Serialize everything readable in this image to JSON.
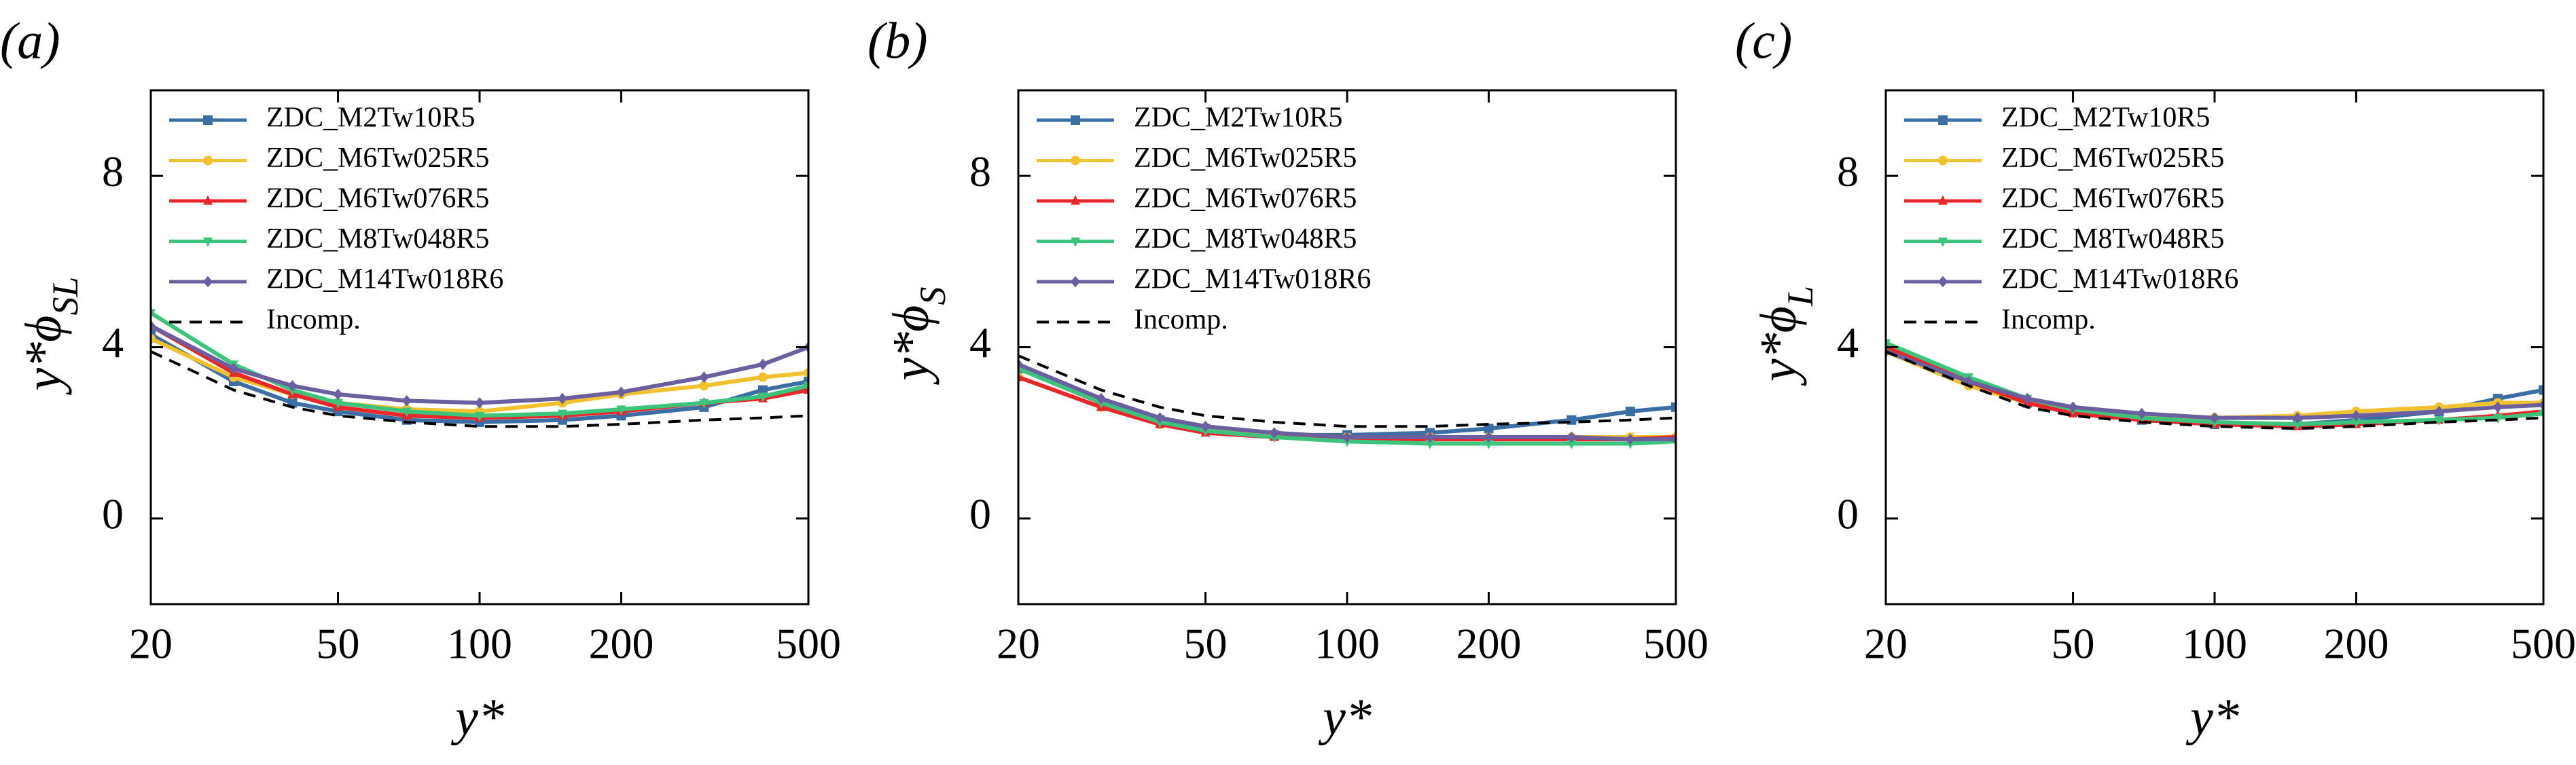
{
  "chart_data": [
    {
      "type": "line",
      "panel": "(a)",
      "ylabel": "y*ϕ",
      "ylabel_subscript": "SL",
      "xlabel": "y*",
      "xscale": "log",
      "xlim": [
        20,
        500
      ],
      "xticks": [
        20,
        50,
        100,
        200,
        500
      ],
      "ylim": [
        -2,
        10
      ],
      "yticks": [
        0,
        4,
        8
      ],
      "legend": "upper left",
      "x": [
        20,
        30,
        40,
        50,
        70,
        100,
        150,
        200,
        300,
        400,
        500
      ],
      "series": [
        {
          "name": "ZDC_M2Tw10R5",
          "color": "#3b6ea5",
          "marker": "square",
          "values": [
            4.3,
            3.2,
            2.7,
            2.5,
            2.3,
            2.25,
            2.3,
            2.4,
            2.6,
            3.0,
            3.2
          ]
        },
        {
          "name": "ZDC_M6Tw025R5",
          "color": "#f2c12e",
          "marker": "circle",
          "values": [
            4.2,
            3.3,
            2.9,
            2.7,
            2.55,
            2.5,
            2.7,
            2.9,
            3.1,
            3.3,
            3.4
          ]
        },
        {
          "name": "ZDC_M6Tw076R5",
          "color": "#e8262b",
          "marker": "triangle-up",
          "values": [
            4.5,
            3.4,
            2.9,
            2.6,
            2.4,
            2.35,
            2.4,
            2.5,
            2.7,
            2.8,
            3.0
          ]
        },
        {
          "name": "ZDC_M8Tw048R5",
          "color": "#3cc47c",
          "marker": "triangle-down",
          "values": [
            4.8,
            3.6,
            3.0,
            2.7,
            2.5,
            2.4,
            2.45,
            2.55,
            2.7,
            2.85,
            3.1
          ]
        },
        {
          "name": "ZDC_M14Tw018R6",
          "color": "#6b5fa0",
          "marker": "diamond",
          "values": [
            4.5,
            3.5,
            3.1,
            2.9,
            2.75,
            2.7,
            2.8,
            2.95,
            3.3,
            3.6,
            4.0
          ]
        },
        {
          "name": "Incomp.",
          "color": "#000000",
          "marker": "none",
          "dashed": true,
          "values": [
            3.9,
            3.0,
            2.6,
            2.4,
            2.25,
            2.15,
            2.15,
            2.2,
            2.3,
            2.35,
            2.4
          ]
        }
      ]
    },
    {
      "type": "line",
      "panel": "(b)",
      "ylabel": "y*ϕ",
      "ylabel_subscript": "S",
      "xlabel": "y*",
      "xscale": "log",
      "xlim": [
        20,
        500
      ],
      "xticks": [
        20,
        50,
        100,
        200,
        500
      ],
      "ylim": [
        -2,
        10
      ],
      "yticks": [
        0,
        4,
        8
      ],
      "legend": "upper left",
      "x": [
        20,
        30,
        40,
        50,
        70,
        100,
        150,
        200,
        300,
        400,
        500
      ],
      "series": [
        {
          "name": "ZDC_M2Tw10R5",
          "color": "#3b6ea5",
          "marker": "square",
          "values": [
            3.5,
            2.7,
            2.3,
            2.1,
            1.95,
            1.95,
            2.0,
            2.1,
            2.3,
            2.5,
            2.6
          ]
        },
        {
          "name": "ZDC_M6Tw025R5",
          "color": "#f2c12e",
          "marker": "circle",
          "values": [
            3.3,
            2.6,
            2.2,
            2.05,
            1.95,
            1.9,
            1.9,
            1.9,
            1.9,
            1.9,
            1.9
          ]
        },
        {
          "name": "ZDC_M6Tw076R5",
          "color": "#e8262b",
          "marker": "triangle-up",
          "values": [
            3.3,
            2.6,
            2.2,
            2.0,
            1.9,
            1.85,
            1.85,
            1.85,
            1.85,
            1.85,
            1.9
          ]
        },
        {
          "name": "ZDC_M8Tw048R5",
          "color": "#3cc47c",
          "marker": "triangle-down",
          "values": [
            3.5,
            2.7,
            2.25,
            2.05,
            1.9,
            1.8,
            1.75,
            1.75,
            1.75,
            1.75,
            1.8
          ]
        },
        {
          "name": "ZDC_M14Tw018R6",
          "color": "#6b5fa0",
          "marker": "diamond",
          "values": [
            3.6,
            2.8,
            2.35,
            2.15,
            2.0,
            1.9,
            1.9,
            1.9,
            1.9,
            1.85,
            1.85
          ]
        },
        {
          "name": "Incomp.",
          "color": "#000000",
          "marker": "none",
          "dashed": true,
          "values": [
            3.8,
            3.0,
            2.6,
            2.4,
            2.25,
            2.15,
            2.15,
            2.2,
            2.25,
            2.3,
            2.35
          ]
        }
      ]
    },
    {
      "type": "line",
      "panel": "(c)",
      "ylabel": "y*ϕ",
      "ylabel_subscript": "L",
      "xlabel": "y*",
      "xscale": "log",
      "xlim": [
        20,
        500
      ],
      "xticks": [
        20,
        50,
        100,
        200,
        500
      ],
      "ylim": [
        -2,
        10
      ],
      "yticks": [
        0,
        4,
        8
      ],
      "legend": "upper left",
      "x": [
        20,
        30,
        40,
        50,
        70,
        100,
        150,
        200,
        300,
        400,
        500
      ],
      "series": [
        {
          "name": "ZDC_M2Tw10R5",
          "color": "#3b6ea5",
          "marker": "square",
          "values": [
            4.0,
            3.2,
            2.7,
            2.5,
            2.3,
            2.2,
            2.2,
            2.3,
            2.5,
            2.8,
            3.0
          ]
        },
        {
          "name": "ZDC_M6Tw025R5",
          "color": "#f2c12e",
          "marker": "circle",
          "values": [
            3.9,
            3.1,
            2.7,
            2.5,
            2.4,
            2.35,
            2.4,
            2.5,
            2.6,
            2.7,
            2.7
          ]
        },
        {
          "name": "ZDC_M6Tw076R5",
          "color": "#e8262b",
          "marker": "triangle-up",
          "values": [
            4.0,
            3.2,
            2.7,
            2.45,
            2.3,
            2.2,
            2.15,
            2.2,
            2.3,
            2.4,
            2.5
          ]
        },
        {
          "name": "ZDC_M8Tw048R5",
          "color": "#3cc47c",
          "marker": "triangle-down",
          "values": [
            4.1,
            3.3,
            2.8,
            2.55,
            2.35,
            2.25,
            2.2,
            2.25,
            2.3,
            2.35,
            2.45
          ]
        },
        {
          "name": "ZDC_M14Tw018R6",
          "color": "#6b5fa0",
          "marker": "diamond",
          "values": [
            3.9,
            3.2,
            2.8,
            2.6,
            2.45,
            2.35,
            2.35,
            2.4,
            2.5,
            2.6,
            2.65
          ]
        },
        {
          "name": "Incomp.",
          "color": "#000000",
          "marker": "none",
          "dashed": true,
          "values": [
            3.9,
            3.1,
            2.6,
            2.4,
            2.25,
            2.15,
            2.1,
            2.15,
            2.25,
            2.3,
            2.35
          ]
        }
      ]
    }
  ]
}
